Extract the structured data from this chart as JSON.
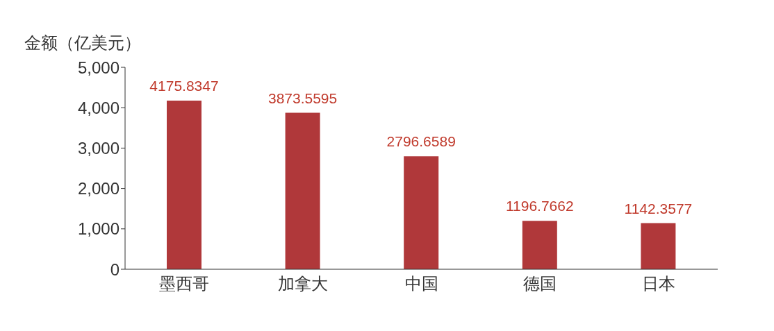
{
  "chart_data": {
    "type": "bar",
    "ylabel": "金额（亿美元）",
    "categories": [
      "墨西哥",
      "加拿大",
      "中国",
      "德国",
      "日本"
    ],
    "values": [
      4175.8347,
      3873.5595,
      2796.6589,
      1196.7662,
      1142.3577
    ],
    "color": "#b0383a",
    "ylim": [
      0,
      5000
    ],
    "yticks": [
      0,
      {
        "value": 1000,
        "label": "1,000"
      },
      {
        "value": 2000,
        "label": "2,000"
      },
      {
        "value": 3000,
        "label": "3,000"
      },
      {
        "value": 4000,
        "label": "4,000"
      },
      {
        "value": 5000,
        "label": "5,000"
      }
    ],
    "grid": false,
    "data_labels": true
  }
}
